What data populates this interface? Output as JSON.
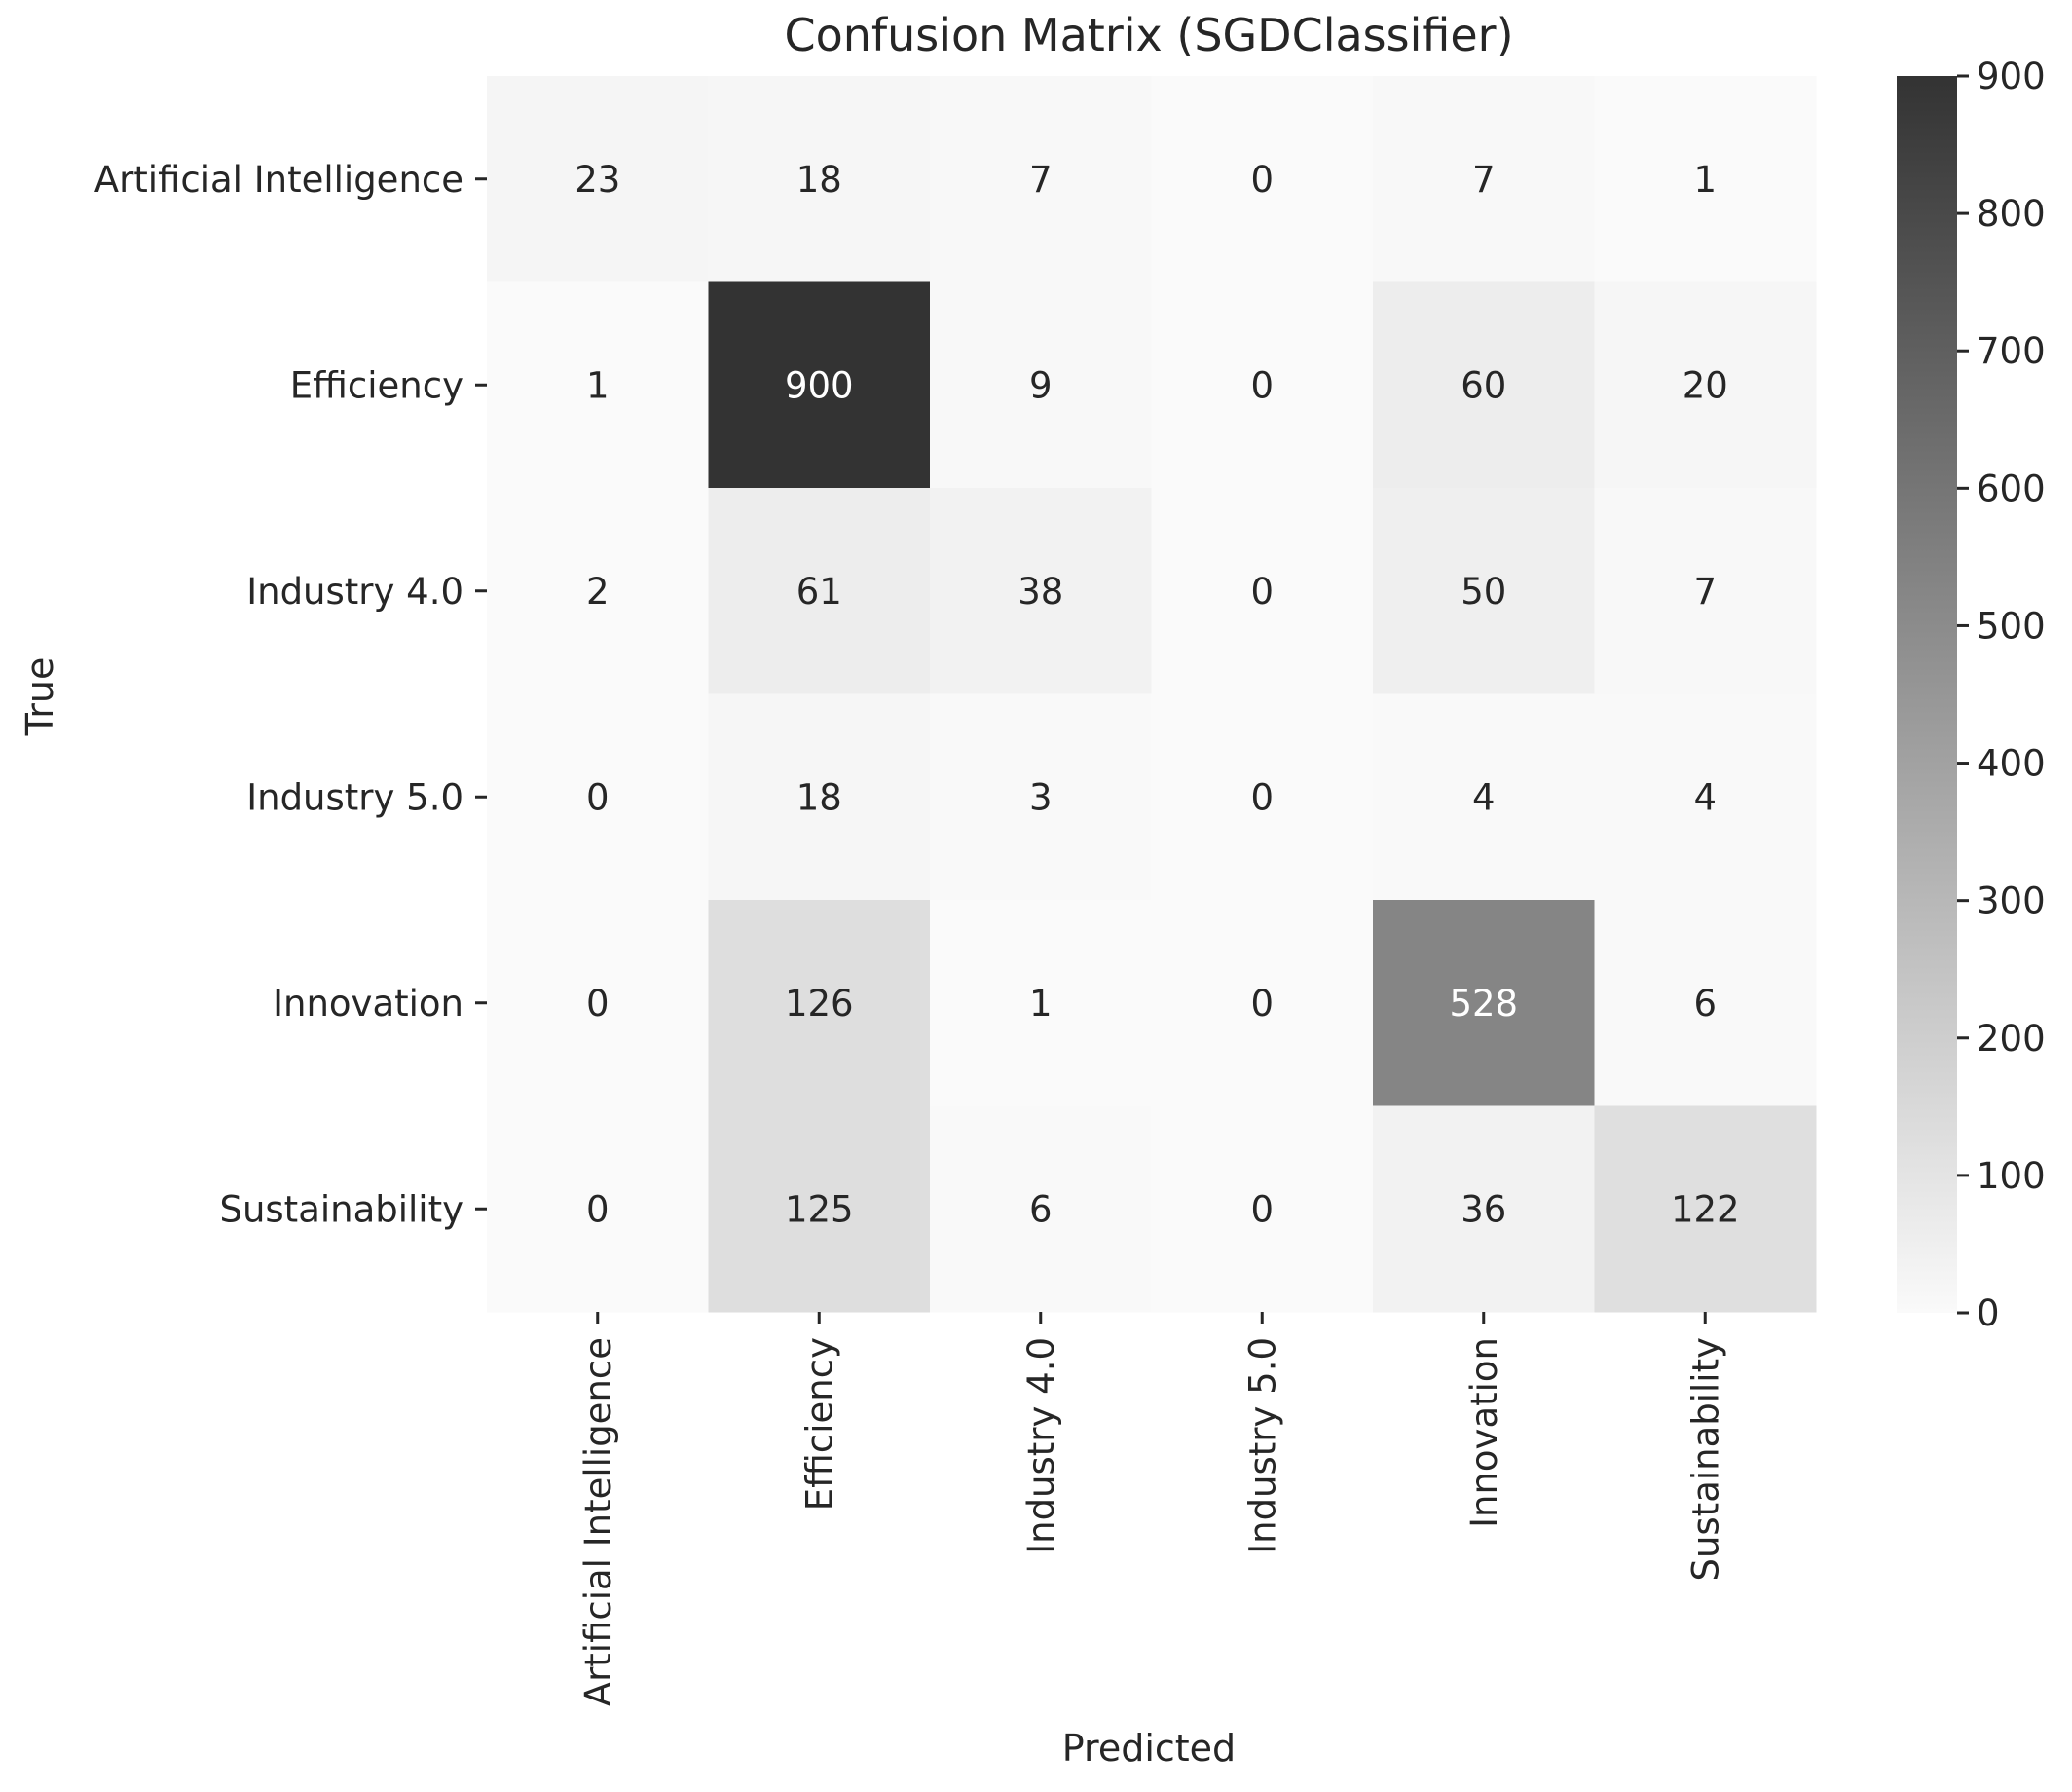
{
  "chart_data": {
    "type": "heatmap",
    "title": "Confusion Matrix (SGDClassifier)",
    "xlabel": "Predicted",
    "ylabel": "True",
    "x_categories": [
      "Artificial Intelligence",
      "Efficiency",
      "Industry 4.0",
      "Industry 5.0",
      "Innovation",
      "Sustainability"
    ],
    "y_categories": [
      "Artificial Intelligence",
      "Efficiency",
      "Industry 4.0",
      "Industry 5.0",
      "Innovation",
      "Sustainability"
    ],
    "values": [
      [
        23,
        18,
        7,
        0,
        7,
        1
      ],
      [
        1,
        900,
        9,
        0,
        60,
        20
      ],
      [
        2,
        61,
        38,
        0,
        50,
        7
      ],
      [
        0,
        18,
        3,
        0,
        4,
        4
      ],
      [
        0,
        126,
        1,
        0,
        528,
        6
      ],
      [
        0,
        125,
        6,
        0,
        36,
        122
      ]
    ],
    "colorbar": {
      "range": [
        0,
        900
      ],
      "ticks": [
        0,
        100,
        200,
        300,
        400,
        500,
        600,
        700,
        800,
        900
      ],
      "colormap": "Greys",
      "min_color": "#fafafa",
      "max_color": "#333333"
    }
  }
}
